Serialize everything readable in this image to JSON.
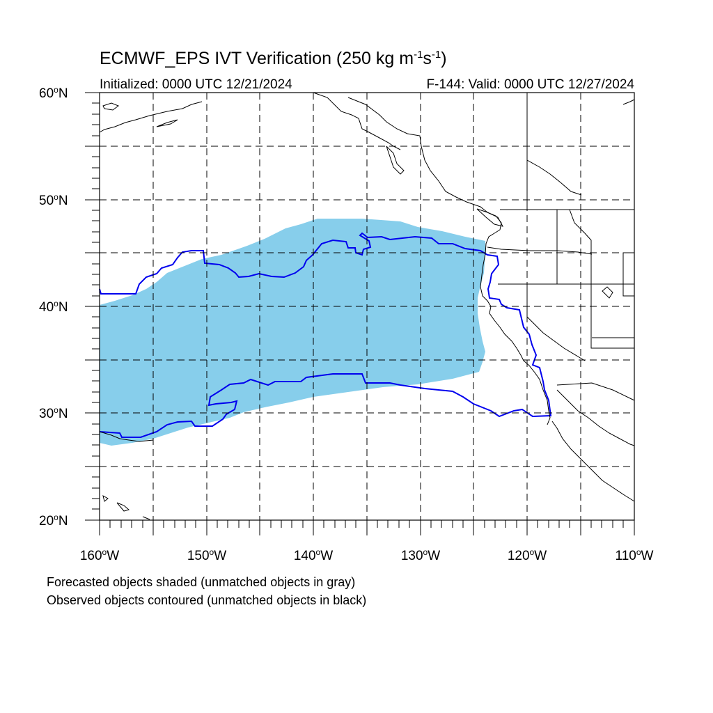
{
  "title": {
    "prefix": "ECMWF_EPS IVT Verification (250 kg m",
    "exp1": "-1",
    "mid": "s",
    "exp2": "-1",
    "suffix": ")"
  },
  "subtitle_left": "Initialized: 0000 UTC 12/21/2024",
  "subtitle_right": "F-144: Valid: 0000 UTC 12/27/2024",
  "lat_labels": [
    {
      "value": "60",
      "hemi": "N"
    },
    {
      "value": "50",
      "hemi": "N"
    },
    {
      "value": "40",
      "hemi": "N"
    },
    {
      "value": "30",
      "hemi": "N"
    },
    {
      "value": "20",
      "hemi": "N"
    }
  ],
  "lon_labels": [
    {
      "value": "160",
      "hemi": "W"
    },
    {
      "value": "150",
      "hemi": "W"
    },
    {
      "value": "140",
      "hemi": "W"
    },
    {
      "value": "130",
      "hemi": "W"
    },
    {
      "value": "120",
      "hemi": "W"
    },
    {
      "value": "110",
      "hemi": "W"
    }
  ],
  "degree_symbol": "o",
  "notes": [
    "Forecasted objects shaded (unmatched objects in gray)",
    "Observed objects contoured (unmatched objects in black)"
  ],
  "map": {
    "lon_range": [
      -160,
      -110
    ],
    "lat_range": [
      20,
      60
    ],
    "projection": "equirectangular",
    "grid": "dashed every 5 degrees",
    "forecast_fill_color": "#87CEEB",
    "observed_contour_color": "#0000EE",
    "coastline_color": "#000000"
  }
}
